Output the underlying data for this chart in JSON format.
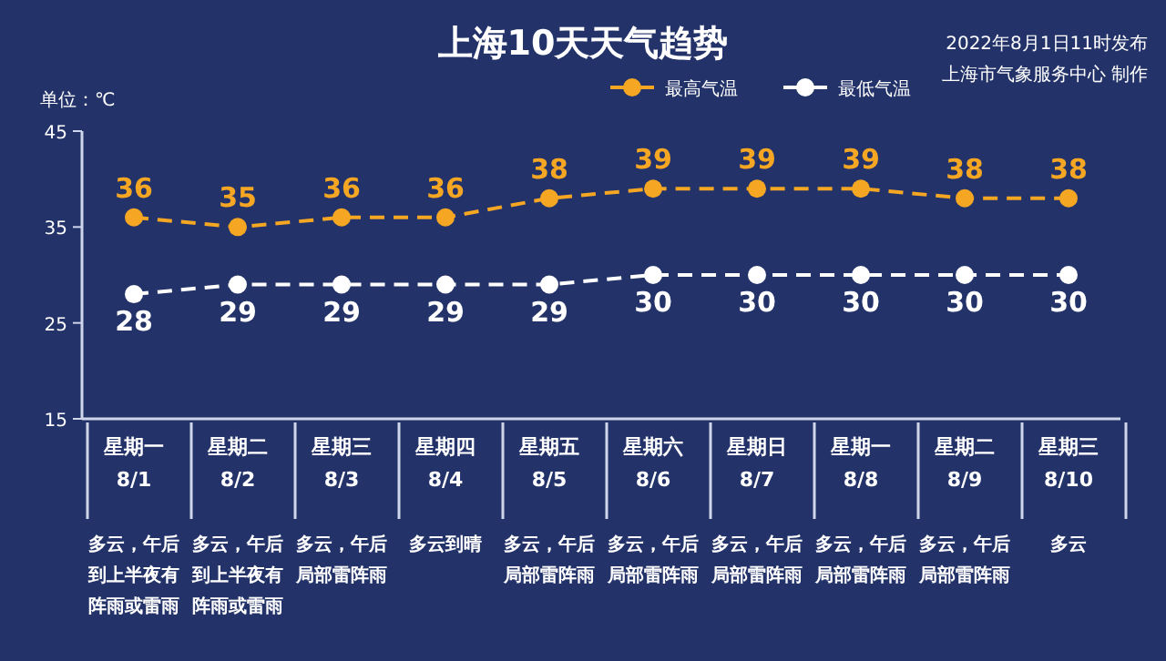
{
  "chart_data": {
    "type": "line",
    "title": "上海10天天气趋势",
    "subtitle": "2022年8月1日11时发布",
    "ylabel": "单位：℃",
    "categories": [
      "星期一\n8/1",
      "星期二\n8/2",
      "星期三\n8/3",
      "星期四\n8/4",
      "星期五\n8/5",
      "星期六\n8/6",
      "星期日\n8/7",
      "星期一\n8/8",
      "星期二\n8/9",
      "星期三\n8/10"
    ],
    "series": [
      {
        "name": "最高气温",
        "color": "#f5a623",
        "values": [
          36,
          35,
          36,
          36,
          38,
          39,
          39,
          39,
          38,
          38
        ]
      },
      {
        "name": "最低气温",
        "color": "#ffffff",
        "values": [
          28,
          29,
          29,
          29,
          29,
          30,
          30,
          30,
          30,
          30
        ]
      }
    ],
    "ylim": [
      15,
      45
    ],
    "yticks": [
      15,
      25,
      35,
      45
    ],
    "data_labels": true,
    "legend": "top right",
    "marker": "circle",
    "line_style": "dashed",
    "grid": false,
    "annotations": [
      "上海市气象服务中心 制作",
      "多云，午后到上半夜有阵雨或雷雨",
      "多云，午后到上半夜有阵雨或雷雨",
      "多云，午后局部雷阵雨",
      "多云到晴",
      "多云，午后局部雷阵雨",
      "多云，午后局部雷阵雨",
      "多云，午后局部雷阵雨",
      "多云，午后局部雷阵雨",
      "多云，午后局部雷阵雨",
      "多云"
    ]
  }
}
